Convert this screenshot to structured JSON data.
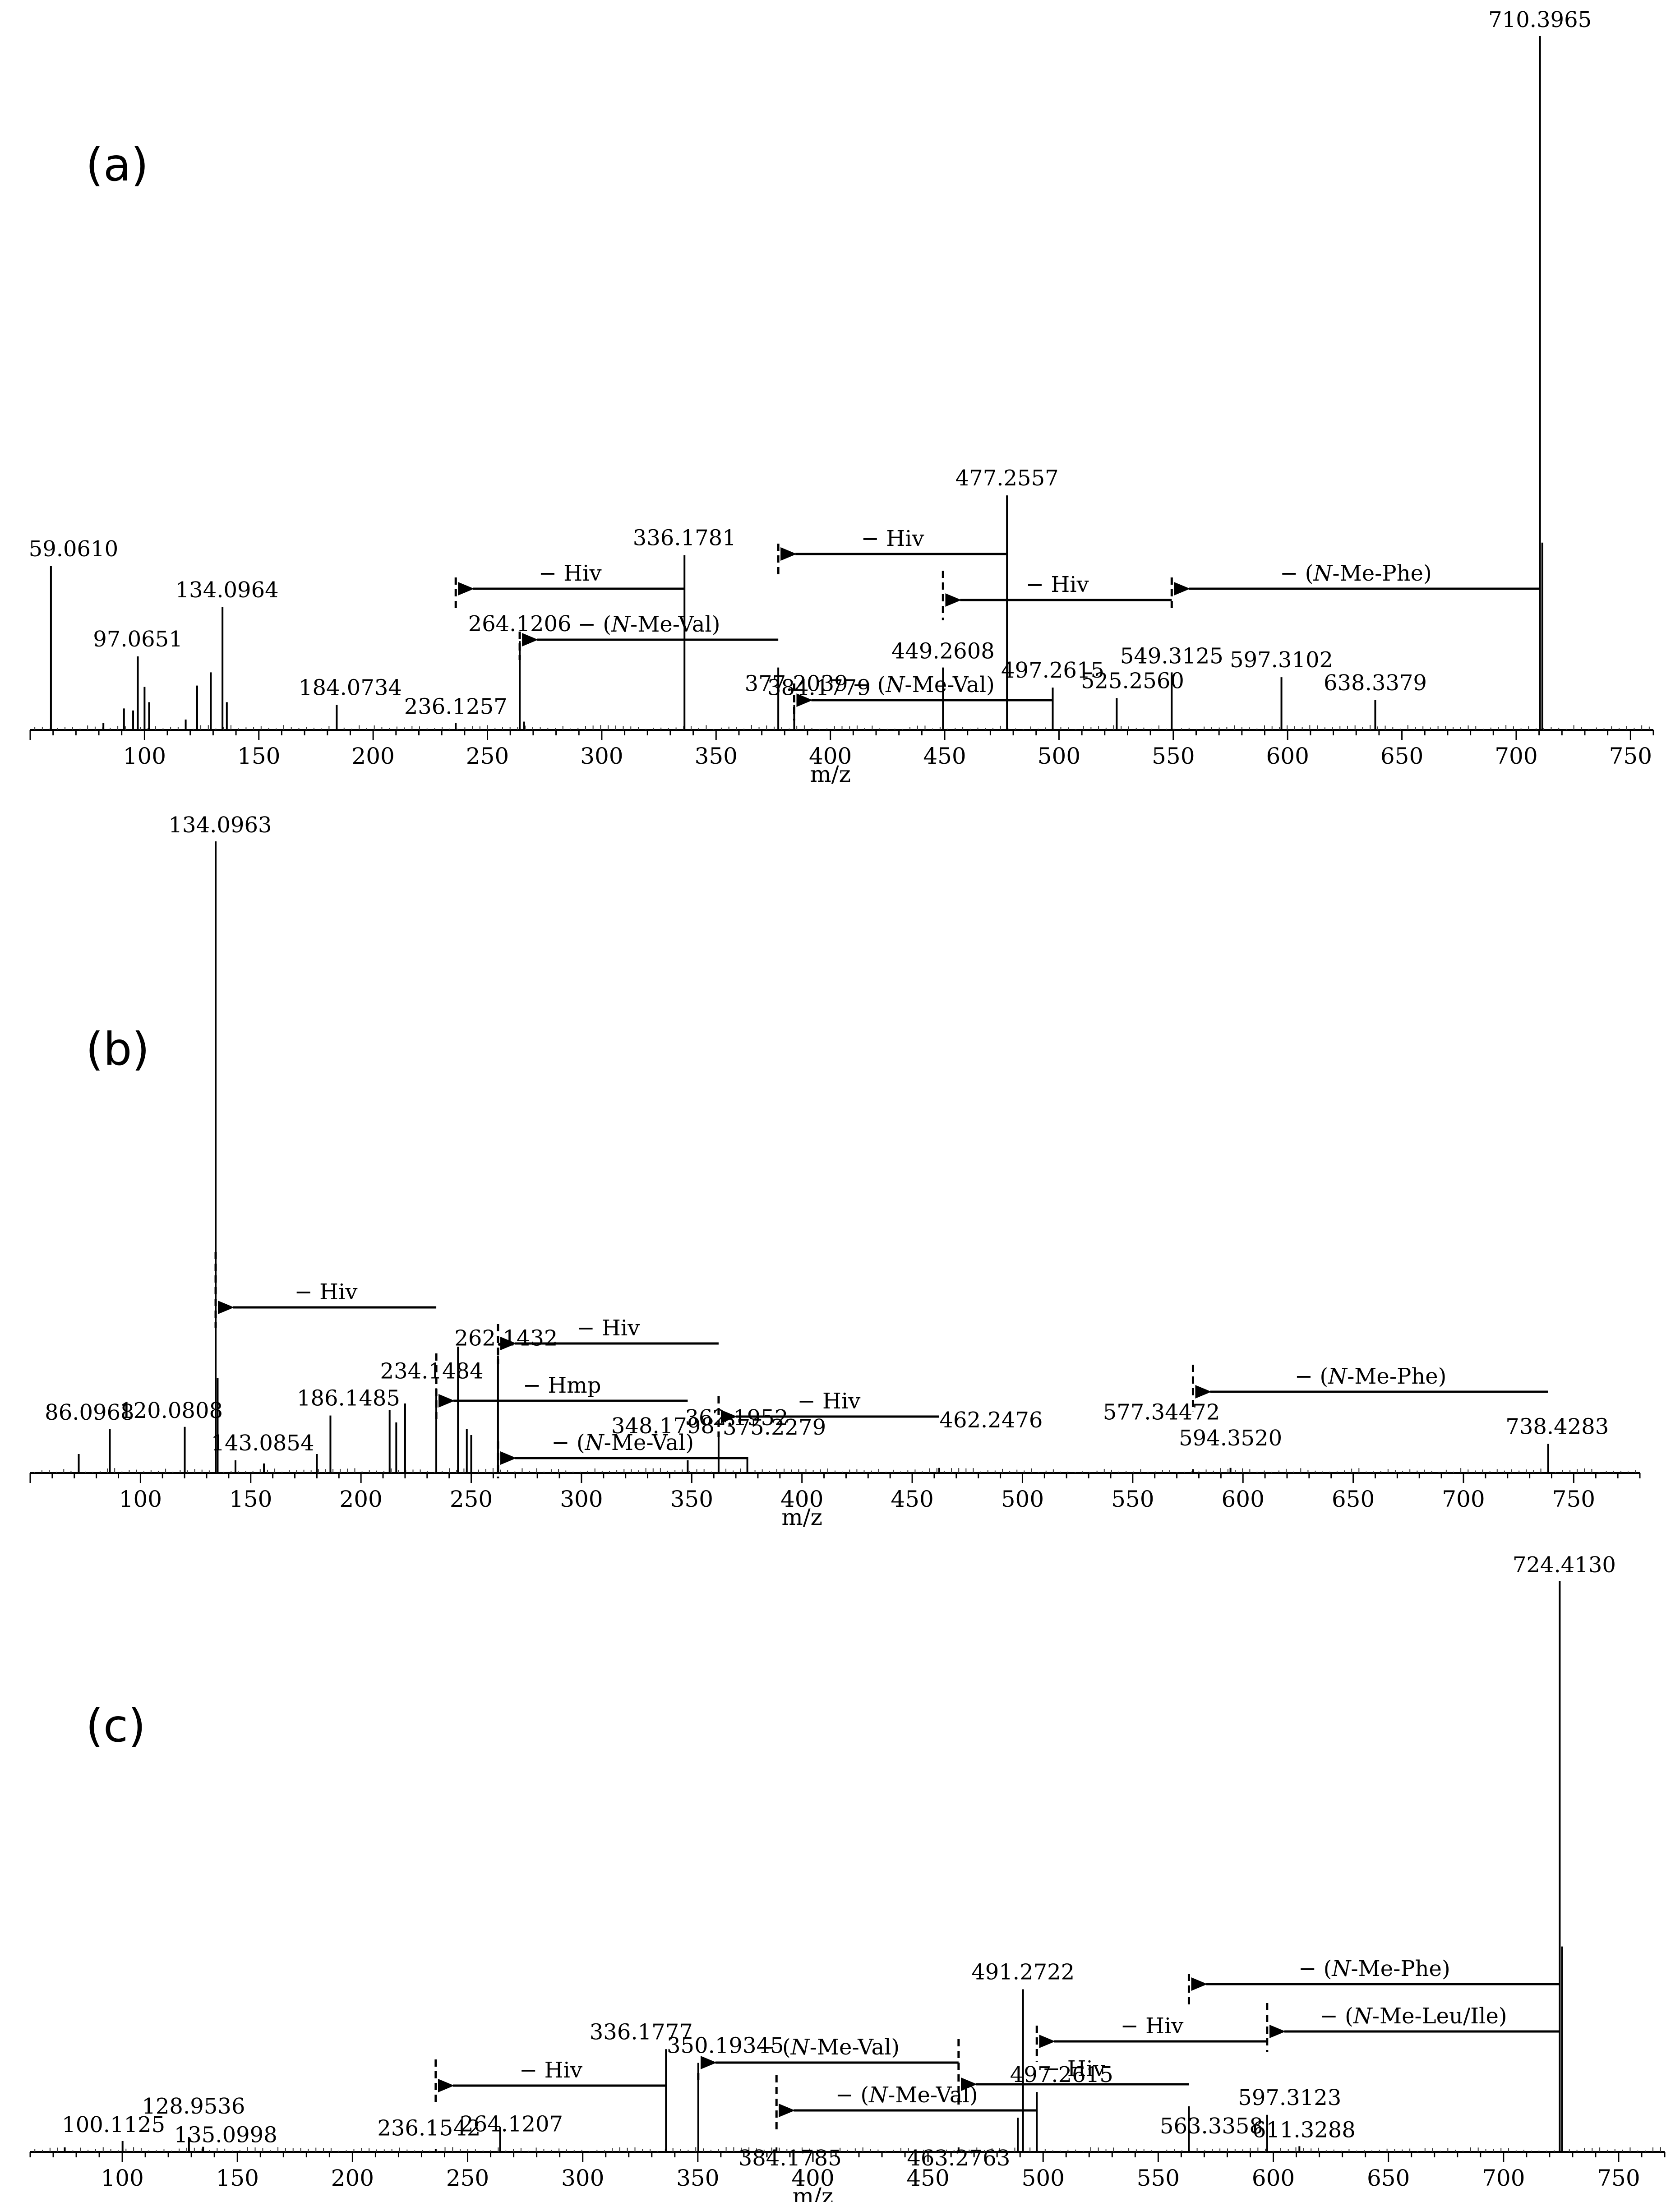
{
  "chart_data": [
    {
      "type": "bar",
      "panel_label": "(a)",
      "xlabel": "m/z",
      "xlim": [
        50,
        760
      ],
      "xticks": [
        100,
        150,
        200,
        250,
        300,
        350,
        400,
        450,
        500,
        550,
        600,
        650,
        700,
        750
      ],
      "ylim": [
        0,
        100
      ],
      "peaks": [
        {
          "mz": 710.3965,
          "rel": 100,
          "label": "710.3965"
        },
        {
          "mz": 477.2557,
          "rel": 33.8,
          "label": "477.2557"
        },
        {
          "mz": 336.1781,
          "rel": 25.2,
          "label": "336.1781"
        },
        {
          "mz": 59.061,
          "rel": 23.6,
          "label": "59.0610"
        },
        {
          "mz": 134.0964,
          "rel": 17.7,
          "label": "134.0964"
        },
        {
          "mz": 264.1206,
          "rel": 12.8,
          "label": "264.1206"
        },
        {
          "mz": 97.0651,
          "rel": 10.6,
          "label": "97.0651"
        },
        {
          "mz": 449.2608,
          "rel": 9.0,
          "label": "449.2608"
        },
        {
          "mz": 377.2039,
          "rel": 9.0,
          "label": "377.2039"
        },
        {
          "mz": 549.3125,
          "rel": 8.3,
          "label": "549.3125"
        },
        {
          "mz": 497.2615,
          "rel": 6.1,
          "label": "497.2615"
        },
        {
          "mz": 597.3102,
          "rel": 7.6,
          "label": "597.3102"
        },
        {
          "mz": 638.3379,
          "rel": 4.3,
          "label": "638.3379"
        },
        {
          "mz": 384.1779,
          "rel": 3.6,
          "label": "384.1779"
        },
        {
          "mz": 525.256,
          "rel": 4.6,
          "label": "525.2560"
        },
        {
          "mz": 184.0734,
          "rel": 3.6,
          "label": "184.0734"
        },
        {
          "mz": 236.1257,
          "rel": 1.0,
          "label": "236.1257"
        },
        {
          "mz": 129,
          "rel": 8.3
        },
        {
          "mz": 123,
          "rel": 6.4
        },
        {
          "mz": 100,
          "rel": 6.2
        },
        {
          "mz": 102,
          "rel": 4.0
        },
        {
          "mz": 95,
          "rel": 2.8
        },
        {
          "mz": 91,
          "rel": 3.1
        },
        {
          "mz": 136,
          "rel": 4.0
        },
        {
          "mz": 118,
          "rel": 1.5
        },
        {
          "mz": 266,
          "rel": 1.2
        },
        {
          "mz": 82,
          "rel": 1.0
        },
        {
          "mz": 711.4,
          "rel": 27
        }
      ],
      "losses": [
        {
          "label": "− Hiv",
          "from": 336.18,
          "to": 236.13
        },
        {
          "label": "− Hiv",
          "from": 477.26,
          "to": 377.2
        },
        {
          "label": "− (N-Me-Val)",
          "from": 377.2,
          "to": 264.12
        },
        {
          "label": "− Hiv",
          "from": 549.31,
          "to": 449.26
        },
        {
          "label": "− (N-Me-Val)",
          "from": 497.26,
          "to": 384.18
        },
        {
          "label": "− (N-Me-Phe)",
          "from": 710.4,
          "to": 549.31
        }
      ]
    },
    {
      "type": "bar",
      "panel_label": "(b)",
      "xlabel": "m/z",
      "xlim": [
        50,
        780
      ],
      "xticks": [
        100,
        150,
        200,
        250,
        300,
        350,
        400,
        450,
        500,
        550,
        600,
        650,
        700,
        750
      ],
      "ylim": [
        0,
        100
      ],
      "peaks": [
        {
          "mz": 134.0963,
          "rel": 100,
          "label": "134.0963"
        },
        {
          "mz": 262.1432,
          "rel": 18.6,
          "label": "262.1432"
        },
        {
          "mz": 244,
          "rel": 20
        },
        {
          "mz": 234.1484,
          "rel": 13.4,
          "label": "234.1484"
        },
        {
          "mz": 186.1485,
          "rel": 9.1,
          "label": "186.1485"
        },
        {
          "mz": 120.0808,
          "rel": 7.3,
          "label": "120.0808"
        },
        {
          "mz": 86.0968,
          "rel": 7.0,
          "label": "86.0968"
        },
        {
          "mz": 362.1952,
          "rel": 6.0,
          "label": "362.1952"
        },
        {
          "mz": 738.4283,
          "rel": 4.6,
          "label": "738.4283"
        },
        {
          "mz": 143.0854,
          "rel": 2.0,
          "label": "143.0854"
        },
        {
          "mz": 348.1798,
          "rel": 2.0,
          "label": "348.1798"
        },
        {
          "mz": 375.2279,
          "rel": 2.5,
          "label": "375.2279"
        },
        {
          "mz": 462.2476,
          "rel": 0.8,
          "label": "462.2476"
        },
        {
          "mz": 577.34472,
          "rel": 0.6,
          "label": "577.34472"
        },
        {
          "mz": 594.352,
          "rel": 0.8,
          "label": "594.3520"
        },
        {
          "mz": 135,
          "rel": 15
        },
        {
          "mz": 213,
          "rel": 10
        },
        {
          "mz": 216,
          "rel": 8
        },
        {
          "mz": 220,
          "rel": 11
        },
        {
          "mz": 248,
          "rel": 7
        },
        {
          "mz": 250,
          "rel": 6
        },
        {
          "mz": 72,
          "rel": 3
        },
        {
          "mz": 180,
          "rel": 3
        },
        {
          "mz": 156,
          "rel": 1.5
        }
      ],
      "losses": [
        {
          "label": "− Hiv",
          "from": 234.15,
          "to": 134.1
        },
        {
          "label": "− Hiv",
          "from": 362.2,
          "to": 262.14
        },
        {
          "label": "− Hmp",
          "from": 348.18,
          "to": 234.15
        },
        {
          "label": "− Hiv",
          "from": 462.25,
          "to": 362.2
        },
        {
          "label": "− (N-Me-Val)",
          "from": 375.23,
          "to": 262.14
        },
        {
          "label": "− (N-Me-Phe)",
          "from": 738.43,
          "to": 577.34
        }
      ]
    },
    {
      "type": "bar",
      "panel_label": "(c)",
      "xlabel": "m/z",
      "xlim": [
        60,
        770
      ],
      "xticks": [
        100,
        150,
        200,
        250,
        300,
        350,
        400,
        450,
        500,
        550,
        600,
        650,
        700,
        750
      ],
      "ylim": [
        0,
        100
      ],
      "peaks": [
        {
          "mz": 724.413,
          "rel": 100,
          "label": "724.4130"
        },
        {
          "mz": 491.2722,
          "rel": 28.5,
          "label": "491.2722"
        },
        {
          "mz": 336.1777,
          "rel": 18.0,
          "label": "336.1777"
        },
        {
          "mz": 350.19345,
          "rel": 15.6,
          "label": "350.19345"
        },
        {
          "mz": 497.2615,
          "rel": 10.5,
          "label": "497.2615"
        },
        {
          "mz": 597.3123,
          "rel": 6.5,
          "label": "597.3123"
        },
        {
          "mz": 563.3358,
          "rel": 8.0,
          "label": "563.3358"
        },
        {
          "mz": 264.1207,
          "rel": 4.4,
          "label": "264.1207"
        },
        {
          "mz": 128.9536,
          "rel": 2.6,
          "label": "128.9536"
        },
        {
          "mz": 100.1125,
          "rel": 1.9,
          "label": "100.1125"
        },
        {
          "mz": 135.0998,
          "rel": 0.9,
          "label": "135.0998"
        },
        {
          "mz": 236.1542,
          "rel": 0.5,
          "label": "236.1542"
        },
        {
          "mz": 384.1785,
          "rel": 0.8,
          "label": "384.1785"
        },
        {
          "mz": 463.2763,
          "rel": 0.8,
          "label": "463.2763"
        },
        {
          "mz": 611.3288,
          "rel": 1.0,
          "label": "611.3288"
        },
        {
          "mz": 489,
          "rel": 6
        },
        {
          "mz": 725.4,
          "rel": 36
        },
        {
          "mz": 75,
          "rel": 0.8
        }
      ],
      "losses": [
        {
          "label": "− (N-Me-Phe)",
          "from": 724.41,
          "to": 563.34
        },
        {
          "label": "− (N-Me-Leu/Ile)",
          "from": 724.41,
          "to": 597.31
        },
        {
          "label": "− Hiv",
          "from": 597.31,
          "to": 497.26
        },
        {
          "label": "− Hiv",
          "from": 563.34,
          "to": 463.28
        },
        {
          "label": "− (N-Me-Val)",
          "from": 463.28,
          "to": 350.19
        },
        {
          "label": "− (N-Me-Val)",
          "from": 497.26,
          "to": 384.18
        },
        {
          "label": "− Hiv",
          "from": 336.18,
          "to": 236.15
        }
      ]
    }
  ]
}
